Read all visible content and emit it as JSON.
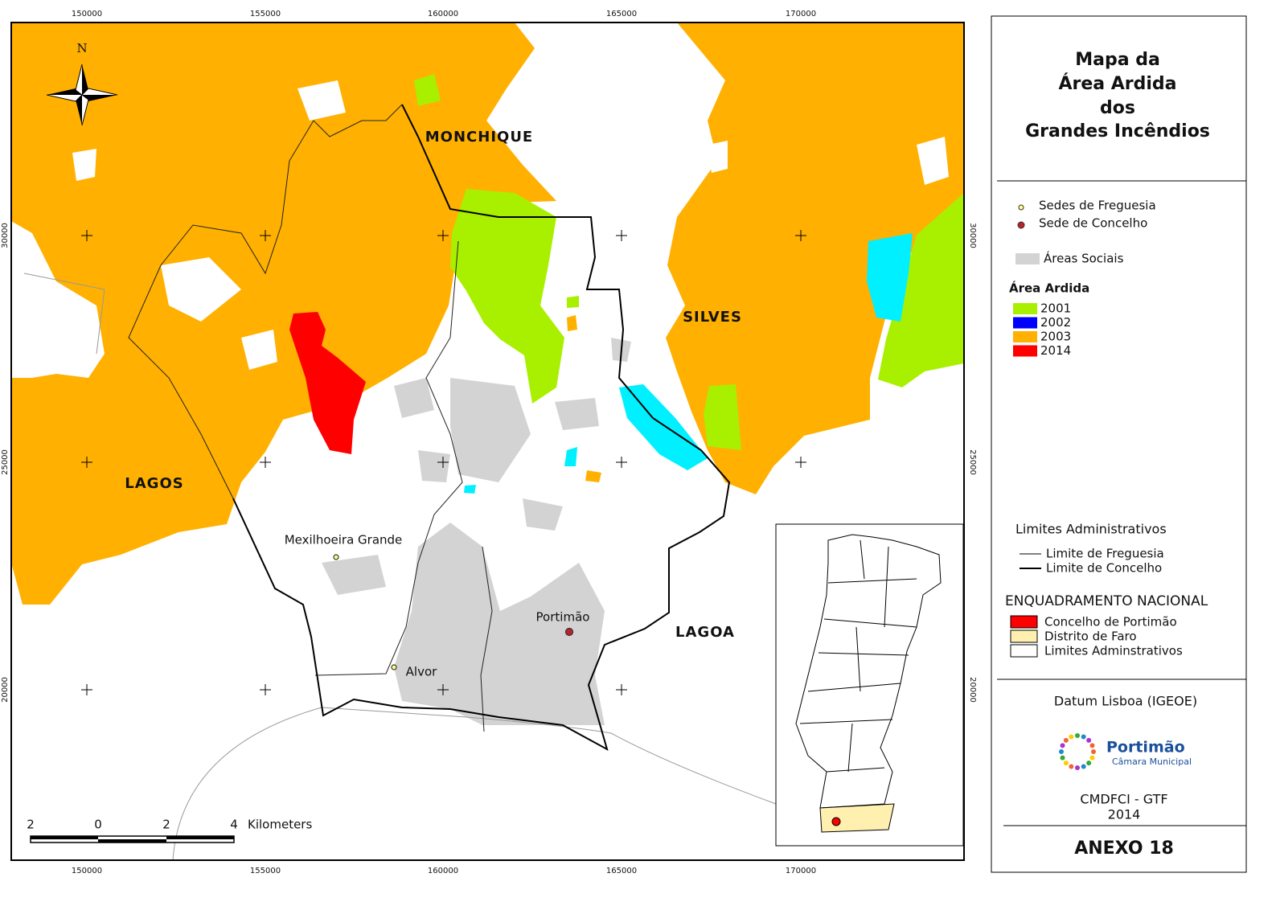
{
  "map": {
    "grid_labels_x": [
      "150000",
      "155000",
      "160000",
      "165000",
      "170000"
    ],
    "grid_labels_y": [
      "30000",
      "25000",
      "20000"
    ],
    "north": "N",
    "place_labels": [
      "MONCHIQUE",
      "SILVES",
      "LAGOS",
      "LAGOA",
      "Mexilhoeira Grande",
      "Portimão",
      "Alvor"
    ],
    "scale_bar": {
      "labels": [
        "2",
        "0",
        "2",
        "4"
      ],
      "unit": "Kilometers"
    }
  },
  "legend": {
    "title": [
      "Mapa da",
      "Área Ardida",
      "dos",
      "Grandes Incêndios"
    ],
    "points": [
      "Sedes de Freguesia",
      "Sede de Concelho"
    ],
    "social": "Áreas Sociais",
    "burned_title": "Área Ardida",
    "burned": [
      {
        "year": "2001",
        "color": "#a8f000"
      },
      {
        "year": "2002",
        "color": "#0000ff"
      },
      {
        "year": "2003",
        "color": "#ffb000"
      },
      {
        "year": "2014",
        "color": "#ff0000"
      }
    ],
    "limits_title": "Limites Administrativos",
    "limits": [
      "Limite de Freguesia",
      "Limite de Concelho"
    ],
    "national_title": "ENQUADRAMENTO NACIONAL",
    "national": [
      {
        "label": "Concelho de Portimão",
        "color": "#ff0000"
      },
      {
        "label": "Distrito de Faro",
        "color": "#fff0b0"
      },
      {
        "label": "Limites Adminstrativos",
        "color": "#ffffff"
      }
    ],
    "datum": "Datum Lisboa (IGEOE)",
    "logo": {
      "name": "Portimão",
      "subtitle": "Câmara Municipal"
    },
    "credits": "CMDFCI - GTF",
    "year": "2014",
    "annex": "ANEXO 18"
  }
}
